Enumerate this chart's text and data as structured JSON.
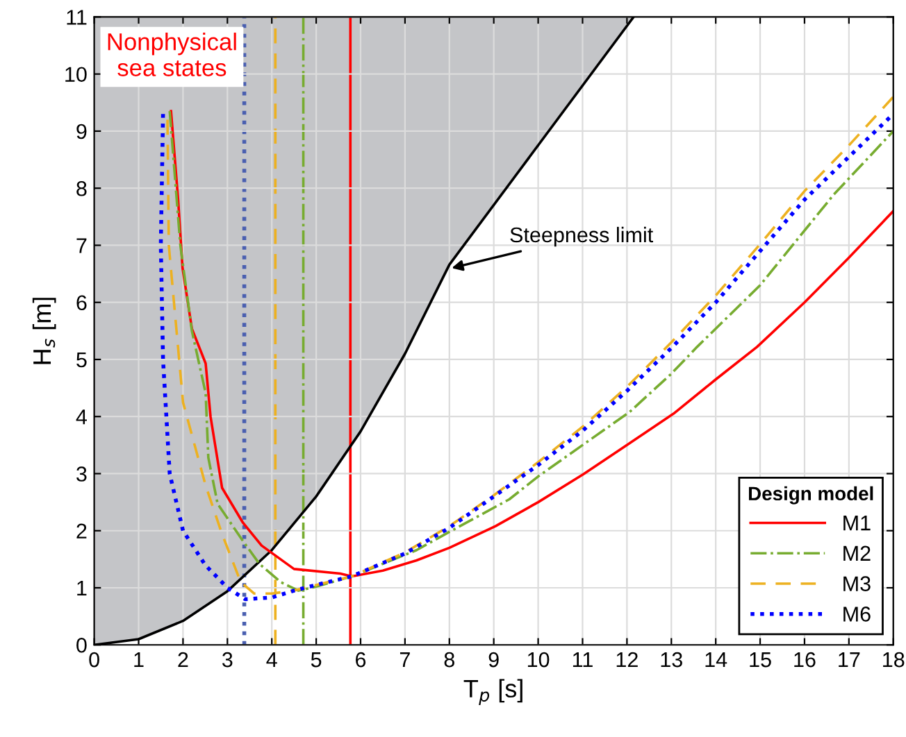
{
  "chart_data": {
    "type": "line",
    "xlabel": "T$_{p}$ [s]",
    "ylabel": "H$_{s}$ [m]",
    "legend_title": "Design model",
    "legend": "bottom right",
    "grid": true,
    "xlim": [
      0,
      18
    ],
    "ylim": [
      0,
      11
    ],
    "xticks": [
      0,
      1,
      2,
      3,
      4,
      5,
      6,
      7,
      8,
      9,
      10,
      11,
      12,
      13,
      14,
      15,
      16,
      17,
      18
    ],
    "yticks": [
      0,
      1,
      2,
      3,
      4,
      5,
      6,
      7,
      8,
      9,
      10,
      11
    ],
    "series": [
      {
        "color": "#000000",
        "line_style": "solid",
        "x": [
          0,
          1,
          2,
          3,
          4,
          5,
          6,
          7,
          8,
          12.15
        ],
        "values": [
          0,
          0.1,
          0.42,
          0.94,
          1.66,
          2.6,
          3.74,
          5.1,
          6.66,
          11
        ]
      },
      {
        "name": "M1",
        "color": "#ff0000",
        "line_style": "solid",
        "x": [
          1.73,
          1.89,
          1.99,
          2.2,
          2.51,
          2.62,
          2.88,
          3.35,
          3.77,
          4.5,
          5.54,
          5.8,
          6.5,
          7.26,
          8,
          9.04,
          10,
          11.02,
          12,
          13.05,
          14,
          14.93,
          16,
          16.97,
          18
        ],
        "values": [
          9.35,
          7.8,
          6.6,
          5.54,
          4.93,
          4.0,
          2.75,
          2.14,
          1.74,
          1.33,
          1.25,
          1.2,
          1.3,
          1.48,
          1.7,
          2.08,
          2.5,
          2.99,
          3.5,
          4.05,
          4.65,
          5.22,
          6.0,
          6.76,
          7.6
        ]
      },
      {
        "name": "M2",
        "color": "#77ac30",
        "line_style": "dashdot",
        "x": [
          1.7,
          1.94,
          2.2,
          2.51,
          2.57,
          2.78,
          3.35,
          3.72,
          4.2,
          4.6,
          5.0,
          5.8,
          7.26,
          8,
          9.35,
          10,
          11,
          12.06,
          13,
          13.58,
          15,
          16.66,
          18
        ],
        "values": [
          9.35,
          7.0,
          5.5,
          4.41,
          3.28,
          2.47,
          1.82,
          1.42,
          1.1,
          0.95,
          1.02,
          1.2,
          1.66,
          1.98,
          2.55,
          2.95,
          3.5,
          4.08,
          4.75,
          5.22,
          6.3,
          7.89,
          9.0
        ]
      },
      {
        "name": "M3",
        "color": "#edb120",
        "line_style": "dashed",
        "x": [
          1.65,
          1.68,
          2.0,
          2.51,
          2.88,
          3.3,
          3.6,
          4.0,
          4.5,
          5.0,
          5.8,
          7,
          8,
          9,
          10,
          11,
          12,
          13,
          14,
          15,
          16,
          17,
          18
        ],
        "values": [
          9.2,
          7.0,
          4.25,
          2.79,
          1.94,
          1.1,
          0.9,
          0.9,
          0.95,
          1.05,
          1.2,
          1.62,
          2.08,
          2.62,
          3.2,
          3.82,
          4.52,
          5.3,
          6.12,
          7.02,
          7.95,
          8.75,
          9.6
        ]
      },
      {
        "name": "M6",
        "color": "#0000ff",
        "line_style": "dotted",
        "x": [
          1.55,
          1.5,
          1.55,
          1.7,
          2.0,
          2.5,
          3.0,
          3.4,
          4.0,
          4.5,
          5.0,
          5.8,
          7,
          8,
          9,
          10,
          11,
          12,
          13,
          14,
          15,
          16,
          17,
          18
        ],
        "values": [
          9.3,
          7.0,
          5.0,
          3.0,
          2.0,
          1.4,
          1.0,
          0.8,
          0.83,
          0.95,
          1.05,
          1.2,
          1.6,
          2.05,
          2.6,
          3.15,
          3.75,
          4.45,
          5.2,
          6.0,
          6.9,
          7.8,
          8.55,
          9.3
        ]
      }
    ],
    "ref_lines": [
      {
        "axis": "x",
        "value": 5.77,
        "color": "#ff0000",
        "line_style": "solid"
      },
      {
        "axis": "x",
        "value": 4.71,
        "color": "#77ac30",
        "line_style": "dashdot"
      },
      {
        "axis": "x",
        "value": 4.08,
        "color": "#edb120",
        "line_style": "dashed"
      },
      {
        "axis": "x",
        "value": 3.38,
        "color": "#4a5fb0",
        "line_style": "dotted"
      }
    ],
    "annotations": [
      "Nonphysical\nsea states",
      {
        "text": "Steepness limit",
        "x": 8.05,
        "y": 6.6
      }
    ]
  }
}
